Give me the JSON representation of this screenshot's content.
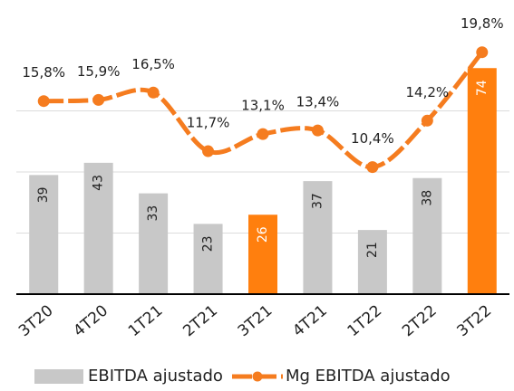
{
  "chart_data": {
    "type": "bar_line",
    "categories": [
      "3T20",
      "4T20",
      "1T21",
      "2T21",
      "3T21",
      "4T21",
      "1T22",
      "2T22",
      "3T22"
    ],
    "series": [
      {
        "name": "EBITDA ajustado",
        "type": "bar",
        "color": "#c8c8c8",
        "colors": [
          "#c8c8c8",
          "#c8c8c8",
          "#c8c8c8",
          "#c8c8c8",
          "#ff7f0e",
          "#c8c8c8",
          "#c8c8c8",
          "#c8c8c8",
          "#ff7f0e"
        ],
        "values": [
          39,
          43,
          33,
          23,
          26,
          37,
          21,
          38,
          74
        ]
      },
      {
        "name": "Mg EBITDA ajustado",
        "type": "line",
        "axis": "y2",
        "color": "#f57c1f",
        "values": [
          15.8,
          15.9,
          16.5,
          11.7,
          13.1,
          13.4,
          10.4,
          14.2,
          19.8
        ],
        "value_labels": [
          "15,8%",
          "15,9%",
          "16,5%",
          "11,7%",
          "13,1%",
          "13,4%",
          "10,4%",
          "14,2%",
          "19,8%"
        ]
      }
    ],
    "ylim": [
      0,
      80
    ],
    "yticks": [
      0,
      20,
      40,
      60
    ],
    "y2lim": [
      0,
      20
    ],
    "grid": true,
    "legend": "bottom"
  }
}
